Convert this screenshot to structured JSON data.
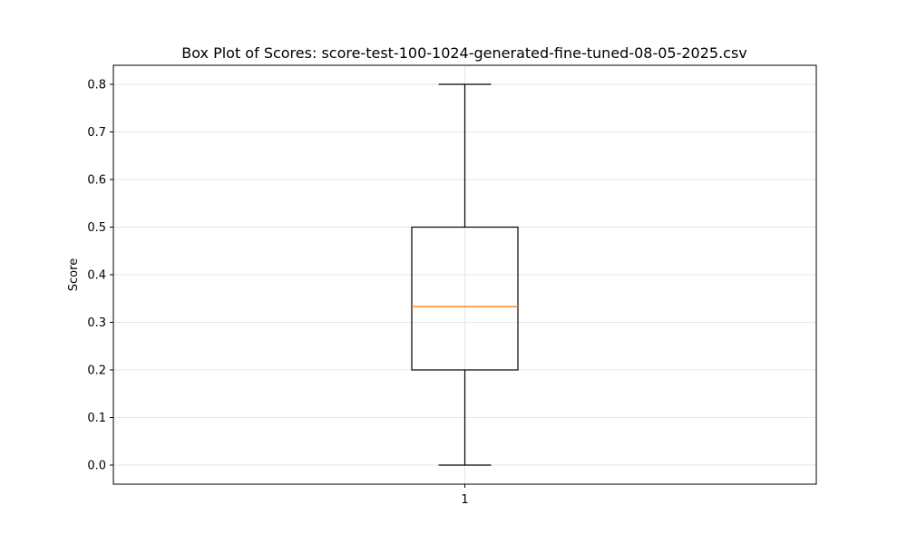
{
  "chart_data": {
    "type": "box",
    "title": "Box Plot of Scores: score-test-100-1024-generated-fine-tuned-08-05-2025.csv",
    "xlabel": "",
    "ylabel": "Score",
    "categories": [
      "1"
    ],
    "boxes": [
      {
        "category": "1",
        "whisker_low": 0.0,
        "q1": 0.2,
        "median": 0.333,
        "q3": 0.5,
        "whisker_high": 0.8
      }
    ],
    "ylim": [
      -0.04,
      0.84
    ],
    "yticks": [
      0.0,
      0.1,
      0.2,
      0.3,
      0.4,
      0.5,
      0.6,
      0.7,
      0.8
    ],
    "ytick_labels": [
      "0.0",
      "0.1",
      "0.2",
      "0.3",
      "0.4",
      "0.5",
      "0.6",
      "0.7",
      "0.8"
    ],
    "grid": true,
    "colors": {
      "box": "#000000",
      "median": "#ff7f0e",
      "grid": "#e6e6e6"
    }
  }
}
